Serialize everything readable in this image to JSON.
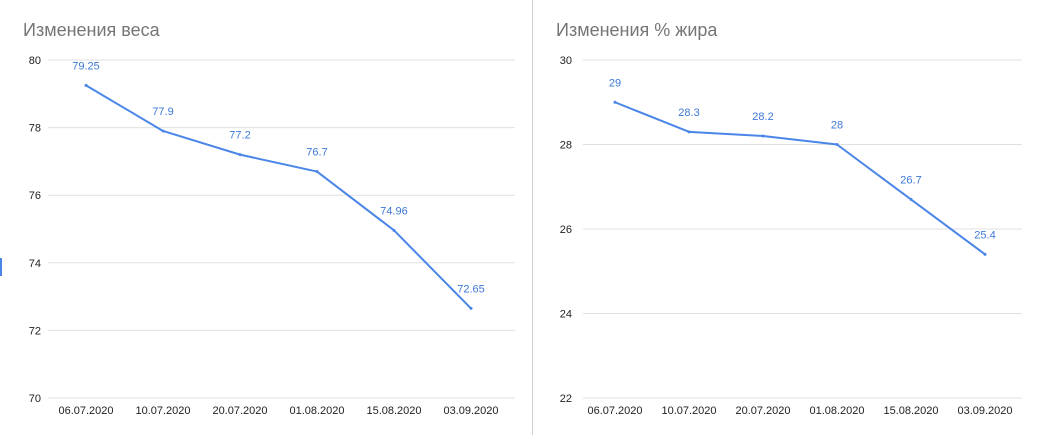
{
  "colors": {
    "line": "#4a86e8",
    "label": "#3c78d8",
    "grid": "#e0e0e0",
    "title": "#757575"
  },
  "chart_data": [
    {
      "type": "line",
      "title": "Изменения веса",
      "xlabel": "",
      "ylabel": "",
      "categories": [
        "06.07.2020",
        "10.07.2020",
        "20.07.2020",
        "01.08.2020",
        "15.08.2020",
        "03.09.2020"
      ],
      "series": [
        {
          "values": [
            79.25,
            77.9,
            77.2,
            76.7,
            74.96,
            72.65
          ]
        }
      ],
      "labels": [
        "79.25",
        "77.9",
        "77.2",
        "76.7",
        "74.96",
        "72.65"
      ],
      "ylim": [
        70,
        80
      ],
      "yticks": [
        70,
        72,
        74,
        76,
        78,
        80
      ],
      "grid": true,
      "legend": "none"
    },
    {
      "type": "line",
      "title": "Изменения % жира",
      "xlabel": "",
      "ylabel": "",
      "categories": [
        "06.07.2020",
        "10.07.2020",
        "20.07.2020",
        "01.08.2020",
        "15.08.2020",
        "03.09.2020"
      ],
      "series": [
        {
          "values": [
            29,
            28.3,
            28.2,
            28,
            26.7,
            25.4
          ]
        }
      ],
      "labels": [
        "29",
        "28.3",
        "28.2",
        "28",
        "26.7",
        "25.4"
      ],
      "ylim": [
        22,
        30
      ],
      "yticks": [
        22,
        24,
        26,
        28,
        30
      ],
      "grid": true,
      "legend": "none"
    }
  ]
}
